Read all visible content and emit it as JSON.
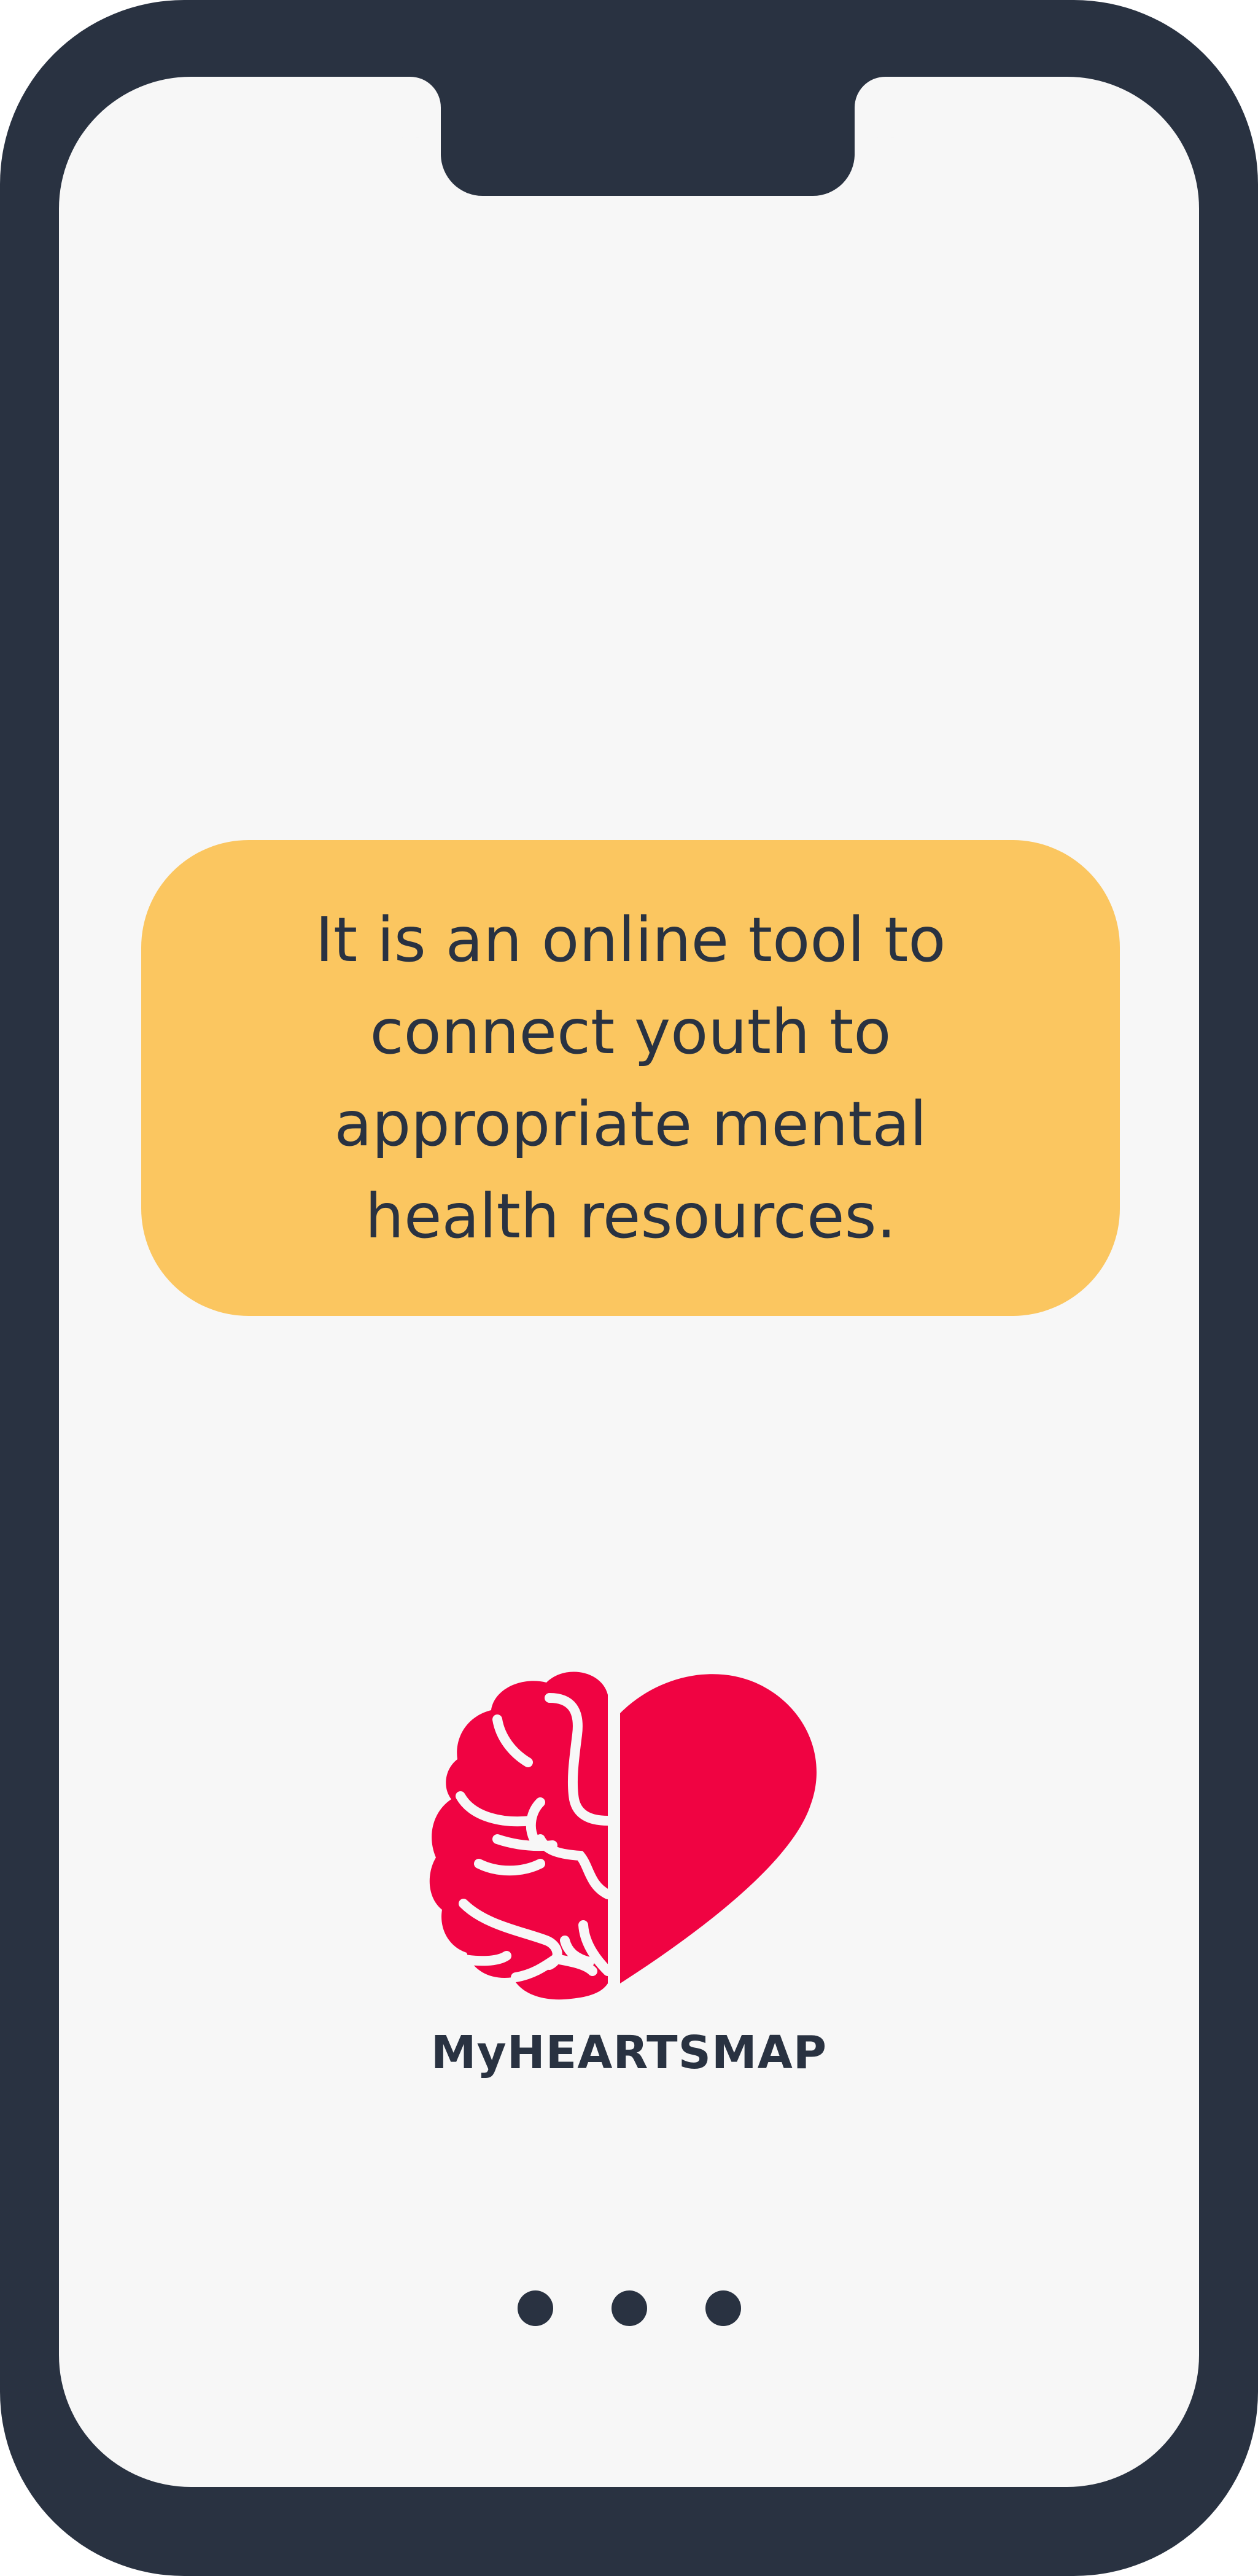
{
  "colors": {
    "frame": "#293241",
    "screen": "#f7f7f7",
    "card": "#fbc660",
    "brand_red": "#f00342",
    "text": "#293241"
  },
  "info_card": {
    "text": "It is an online tool to connect youth to appropriate mental health resources."
  },
  "logo": {
    "icon": "brain-heart-icon",
    "name": "MyHEARTSMAP"
  },
  "pagination": {
    "pages": 3
  }
}
